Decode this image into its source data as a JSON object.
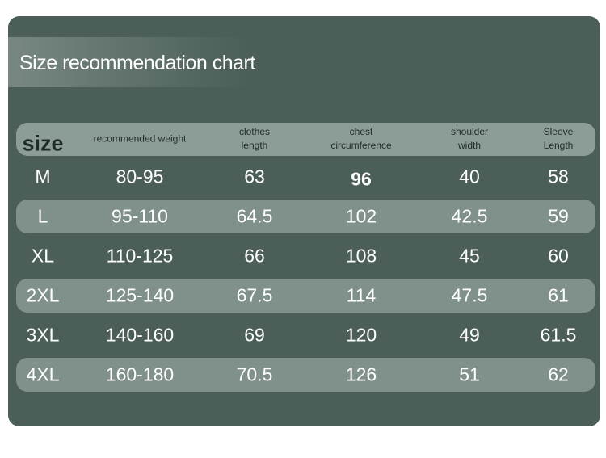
{
  "title": "Size recommendation chart",
  "table": {
    "header": [
      "size",
      "recommended weight",
      "clothes length",
      "chest circumference",
      "shoulder width",
      "Sleeve Length"
    ],
    "rows": [
      [
        "M",
        "80-95",
        "63",
        "96",
        "40",
        "58"
      ],
      [
        "L",
        "95-110",
        "64.5",
        "102",
        "42.5",
        "59"
      ],
      [
        "XL",
        "110-125",
        "66",
        "108",
        "45",
        "60"
      ],
      [
        "2XL",
        "125-140",
        "67.5",
        "114",
        "47.5",
        "61"
      ],
      [
        "3XL",
        "140-160",
        "69",
        "120",
        "49",
        "61.5"
      ],
      [
        "4XL",
        "160-180",
        "70.5",
        "126",
        "51",
        "62"
      ]
    ]
  }
}
